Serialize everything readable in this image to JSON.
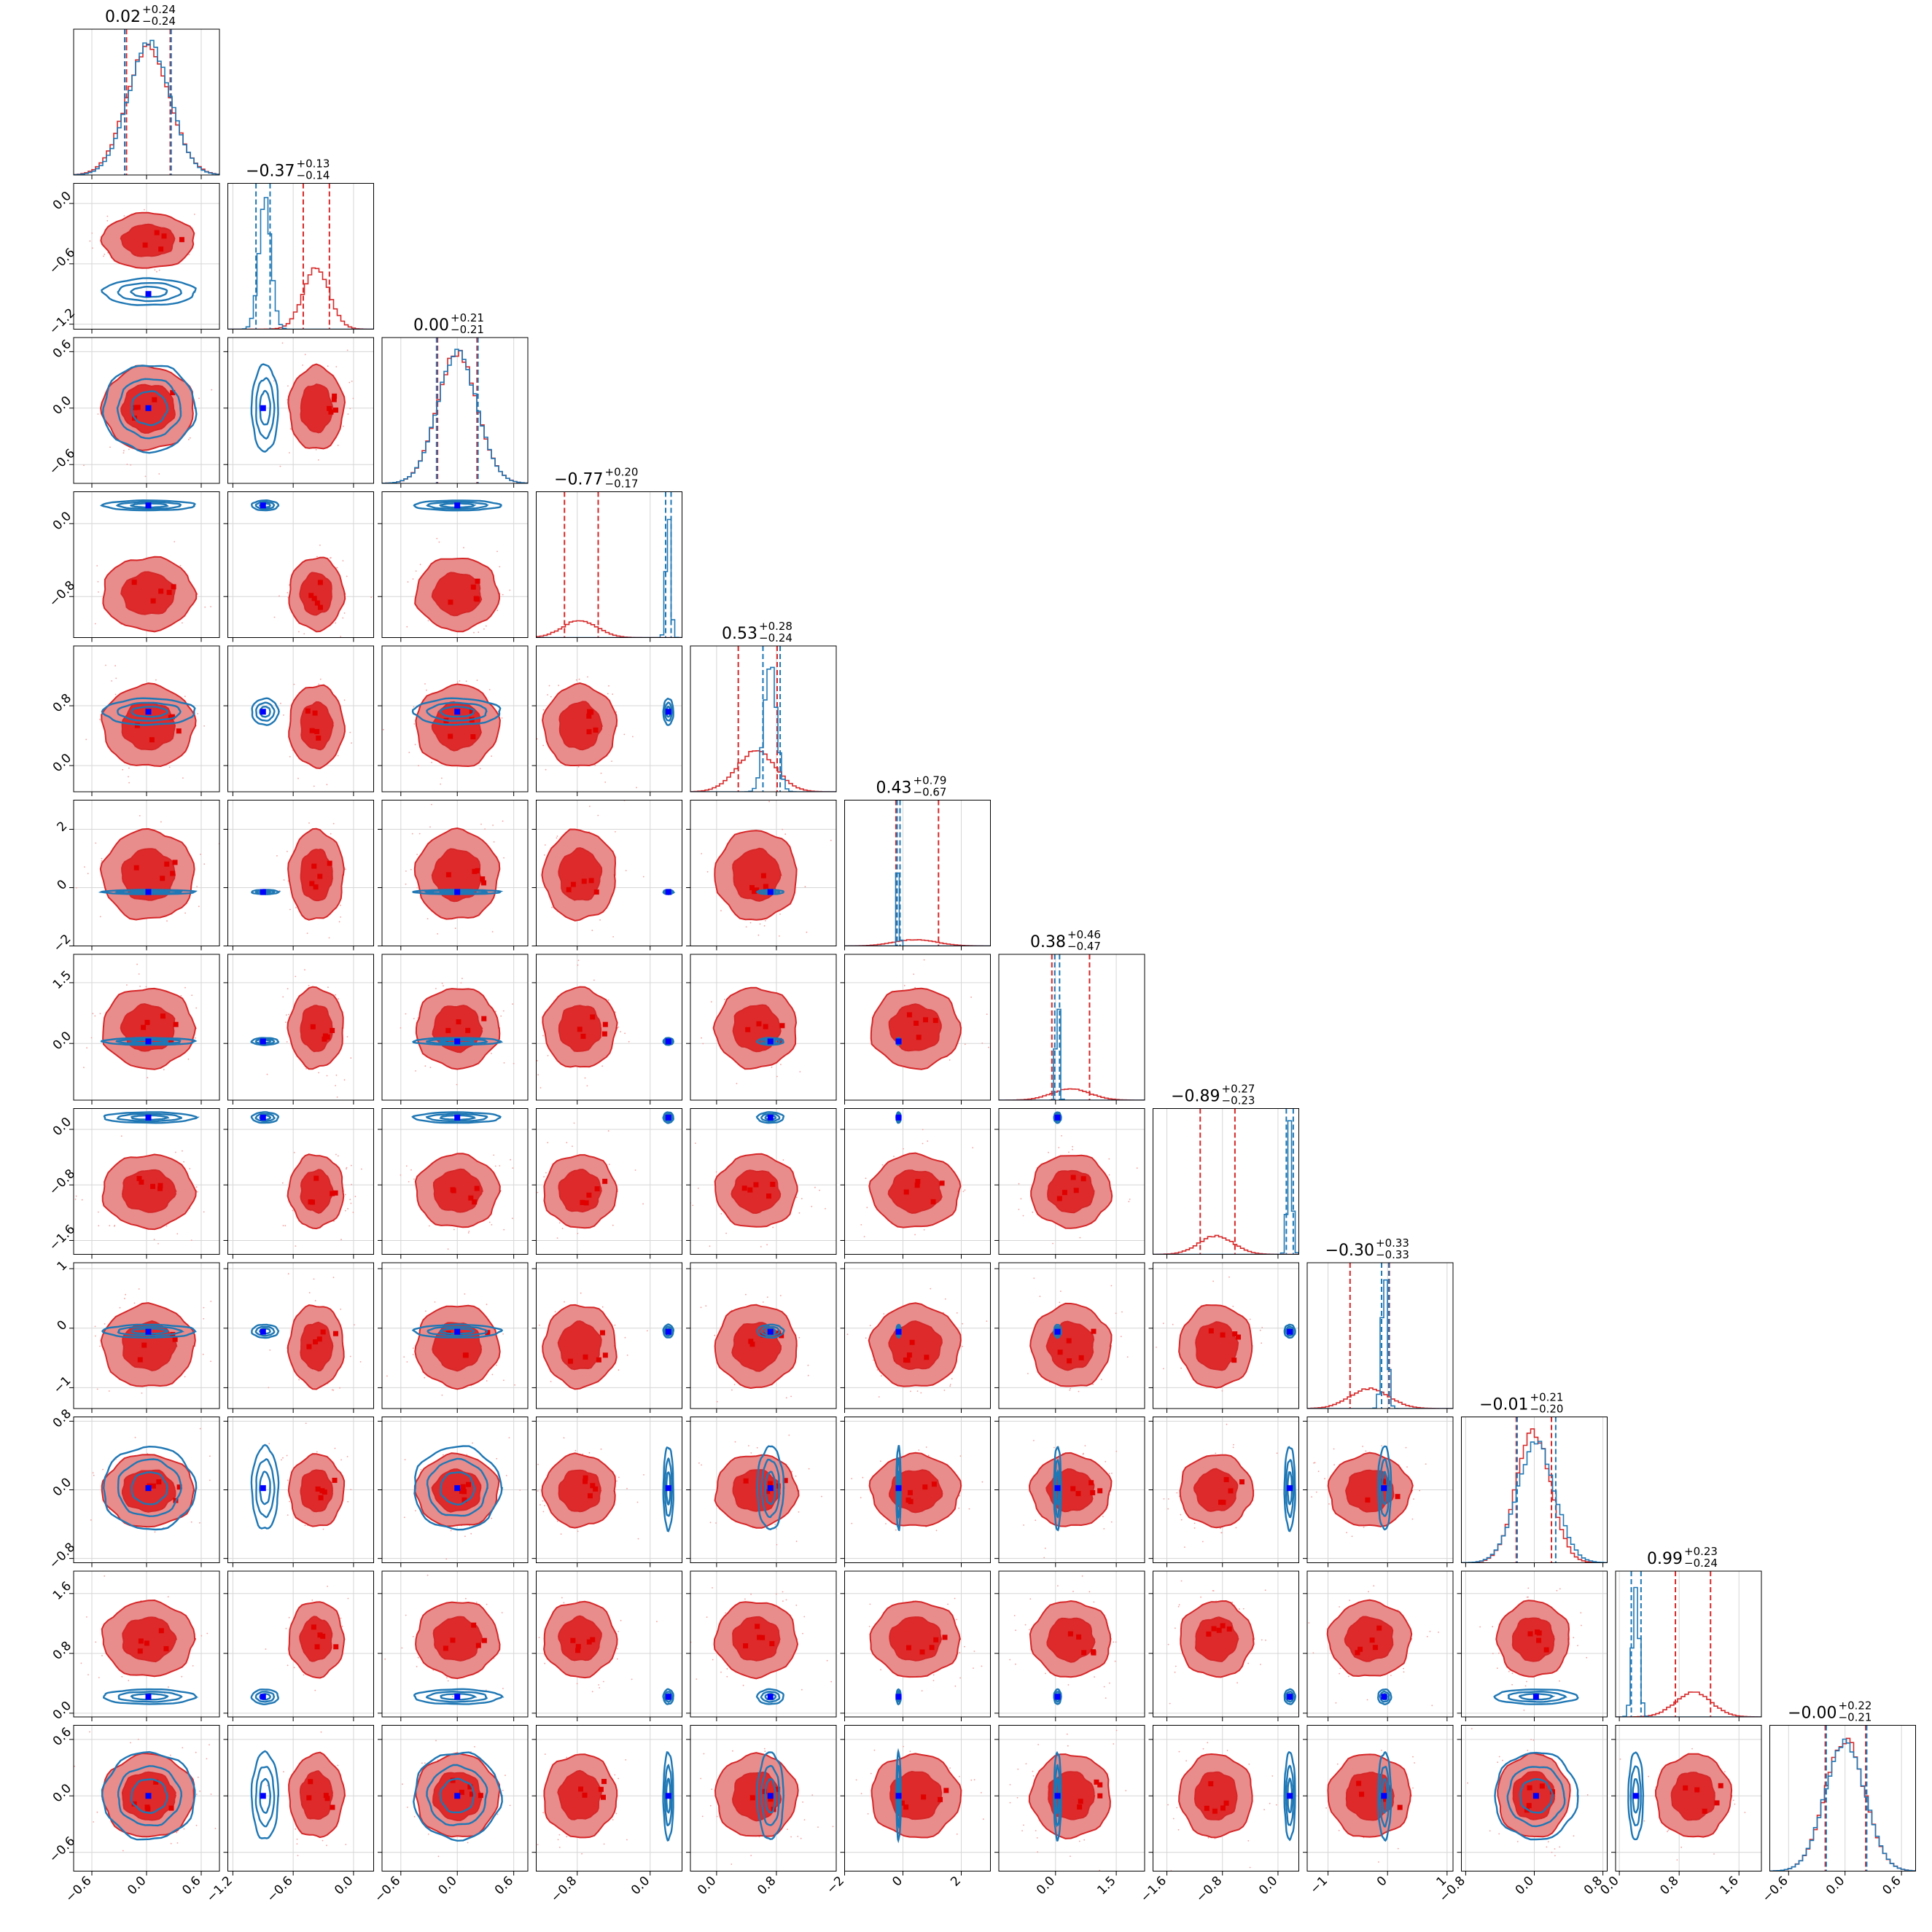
{
  "chart_data": {
    "type": "corner",
    "grid": true,
    "colors": {
      "red": "#d62728",
      "red_fill": "#e88c8c",
      "red_fill_dark": "#de2a2a",
      "blue": "#1f77b4",
      "truth": "#0000ff"
    },
    "params": [
      {
        "title": {
          "main": "0.02",
          "up": "+0.24",
          "down": "−0.24"
        },
        "range": [
          -0.8,
          0.8
        ],
        "ticks": [
          -0.6,
          0.0,
          0.6
        ],
        "tick_labels": [
          "−0.6",
          "0.0",
          "0.6"
        ],
        "red": {
          "mean": 0.02,
          "sd": 0.24,
          "q": [
            -0.22,
            0.26
          ]
        },
        "blue": {
          "mean": 0.03,
          "sd": 0.23,
          "q": [
            -0.24,
            0.27
          ]
        },
        "truth": 0.02
      },
      {
        "title": {
          "main": "−0.37",
          "up": "+0.13",
          "down": "−0.14"
        },
        "range": [
          -1.25,
          0.2
        ],
        "ticks": [
          -1.2,
          -0.6,
          0.0
        ],
        "tick_labels": [
          "−1.2",
          "−0.6",
          "0.0"
        ],
        "red": {
          "mean": -0.37,
          "sd": 0.13,
          "q": [
            -0.5,
            -0.24
          ]
        },
        "blue": {
          "mean": -0.88,
          "sd": 0.06,
          "q": [
            -0.97,
            -0.83
          ]
        },
        "truth": -0.9
      },
      {
        "title": {
          "main": "0.00",
          "up": "+0.21",
          "down": "−0.21"
        },
        "range": [
          -0.8,
          0.75
        ],
        "ticks": [
          -0.6,
          0.0,
          0.6
        ],
        "tick_labels": [
          "−0.6",
          "0.0",
          "0.6"
        ],
        "red": {
          "mean": 0.0,
          "sd": 0.21,
          "q": [
            -0.21,
            0.21
          ]
        },
        "blue": {
          "mean": 0.0,
          "sd": 0.21,
          "q": [
            -0.22,
            0.22
          ]
        },
        "truth": 0.0
      },
      {
        "title": {
          "main": "−0.77",
          "up": "+0.20",
          "down": "−0.17"
        },
        "range": [
          -1.25,
          0.35
        ],
        "ticks": [
          -0.8,
          0.0
        ],
        "tick_labels": [
          "−0.8",
          "0.0"
        ],
        "red": {
          "mean": -0.77,
          "sd": 0.19,
          "q": [
            -0.94,
            -0.57
          ]
        },
        "blue": {
          "mean": 0.2,
          "sd": 0.025,
          "q": [
            0.17,
            0.23
          ]
        },
        "truth": 0.2
      },
      {
        "title": {
          "main": "0.53",
          "up": "+0.28",
          "down": "−0.24"
        },
        "range": [
          -0.35,
          1.6
        ],
        "ticks": [
          0.0,
          0.8
        ],
        "tick_labels": [
          "0.0",
          "0.8"
        ],
        "red": {
          "mean": 0.53,
          "sd": 0.26,
          "q": [
            0.29,
            0.81
          ]
        },
        "blue": {
          "mean": 0.72,
          "sd": 0.08,
          "q": [
            0.62,
            0.85
          ]
        },
        "truth": 0.72
      },
      {
        "title": {
          "main": "0.43",
          "up": "+0.79",
          "down": "−0.67"
        },
        "range": [
          -2.0,
          3.0
        ],
        "ticks": [
          -2,
          0,
          2
        ],
        "tick_labels": [
          "−2",
          "0",
          "2"
        ],
        "red": {
          "mean": 0.43,
          "sd": 0.73,
          "q": [
            -0.24,
            1.22
          ]
        },
        "blue": {
          "mean": -0.15,
          "sd": 0.035,
          "q": [
            -0.2,
            -0.1
          ]
        },
        "truth": -0.15
      },
      {
        "title": {
          "main": "0.38",
          "up": "+0.46",
          "down": "−0.47"
        },
        "range": [
          -1.4,
          2.2
        ],
        "ticks": [
          0.0,
          1.5
        ],
        "tick_labels": [
          "0.0",
          "1.5"
        ],
        "red": {
          "mean": 0.38,
          "sd": 0.47,
          "q": [
            -0.09,
            0.84
          ]
        },
        "blue": {
          "mean": 0.05,
          "sd": 0.04,
          "q": [
            -0.02,
            0.1
          ]
        },
        "truth": 0.05
      },
      {
        "title": {
          "main": "−0.89",
          "up": "+0.27",
          "down": "−0.23"
        },
        "range": [
          -1.8,
          0.3
        ],
        "ticks": [
          -1.6,
          -0.8,
          0.0
        ],
        "tick_labels": [
          "−1.6",
          "−0.8",
          "0.0"
        ],
        "red": {
          "mean": -0.89,
          "sd": 0.25,
          "q": [
            -1.12,
            -0.62
          ]
        },
        "blue": {
          "mean": 0.17,
          "sd": 0.035,
          "q": [
            0.12,
            0.22
          ]
        },
        "truth": 0.17
      },
      {
        "title": {
          "main": "−0.30",
          "up": "+0.33",
          "down": "−0.33"
        },
        "range": [
          -1.35,
          1.1
        ],
        "ticks": [
          -1,
          0,
          1
        ],
        "tick_labels": [
          "−1",
          "0",
          "1"
        ],
        "red": {
          "mean": -0.3,
          "sd": 0.33,
          "q": [
            -0.63,
            0.03
          ]
        },
        "blue": {
          "mean": -0.05,
          "sd": 0.05,
          "q": [
            -0.1,
            0.02
          ]
        },
        "truth": -0.06
      },
      {
        "title": {
          "main": "−0.01",
          "up": "+0.21",
          "down": "−0.20"
        },
        "range": [
          -0.85,
          0.85
        ],
        "ticks": [
          -0.8,
          0.0,
          0.8
        ],
        "tick_labels": [
          "−0.8",
          "0.0",
          "0.8"
        ],
        "red": {
          "mean": -0.01,
          "sd": 0.2,
          "q": [
            -0.21,
            0.2
          ]
        },
        "blue": {
          "mean": 0.02,
          "sd": 0.22,
          "q": [
            -0.2,
            0.25
          ]
        },
        "truth": 0.02
      },
      {
        "title": {
          "main": "0.99",
          "up": "+0.23",
          "down": "−0.24"
        },
        "range": [
          -0.05,
          1.9
        ],
        "ticks": [
          0.0,
          0.8,
          1.6
        ],
        "tick_labels": [
          "0.0",
          "0.8",
          "1.6"
        ],
        "red": {
          "mean": 0.99,
          "sd": 0.24,
          "q": [
            0.75,
            1.22
          ]
        },
        "blue": {
          "mean": 0.22,
          "sd": 0.045,
          "q": [
            0.16,
            0.29
          ]
        },
        "truth": 0.22
      },
      {
        "title": {
          "main": "−0.00",
          "up": "+0.22",
          "down": "−0.21"
        },
        "range": [
          -0.8,
          0.75
        ],
        "ticks": [
          -0.6,
          0.0,
          0.6
        ],
        "tick_labels": [
          "−0.6",
          "0.0",
          "0.6"
        ],
        "red": {
          "mean": 0.0,
          "sd": 0.21,
          "q": [
            -0.21,
            0.22
          ]
        },
        "blue": {
          "mean": 0.0,
          "sd": 0.21,
          "q": [
            -0.2,
            0.23
          ]
        },
        "truth": 0.0
      }
    ]
  }
}
